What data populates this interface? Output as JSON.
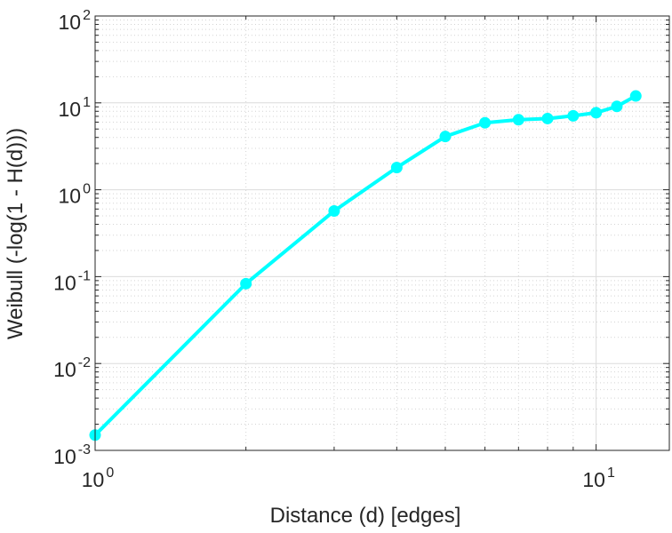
{
  "chart_data": {
    "type": "line",
    "xlabel": "Distance (d) [edges]",
    "ylabel": "Weibull (-log(1 - H(d)))",
    "x_scale": "log",
    "y_scale": "log",
    "xlim": [
      1,
      14
    ],
    "ylim": [
      0.001,
      100
    ],
    "grid": true,
    "minor_grid": true,
    "x_ticks": [
      {
        "base": "10",
        "exp": "0",
        "value": 1
      },
      {
        "base": "10",
        "exp": "1",
        "value": 10
      }
    ],
    "y_ticks": [
      {
        "base": "10",
        "exp": "-3",
        "value": 0.001
      },
      {
        "base": "10",
        "exp": "-2",
        "value": 0.01
      },
      {
        "base": "10",
        "exp": "-1",
        "value": 0.1
      },
      {
        "base": "10",
        "exp": "0",
        "value": 1
      },
      {
        "base": "10",
        "exp": "1",
        "value": 10
      },
      {
        "base": "10",
        "exp": "2",
        "value": 100
      }
    ],
    "series": [
      {
        "color": "#00ffff",
        "marker": "circle",
        "x": [
          1,
          2,
          3,
          4,
          5,
          6,
          7,
          8,
          9,
          10,
          11,
          12
        ],
        "y": [
          0.0015,
          0.083,
          0.57,
          1.8,
          4.1,
          5.9,
          6.4,
          6.6,
          7.1,
          7.7,
          9.1,
          12.0
        ]
      }
    ]
  }
}
